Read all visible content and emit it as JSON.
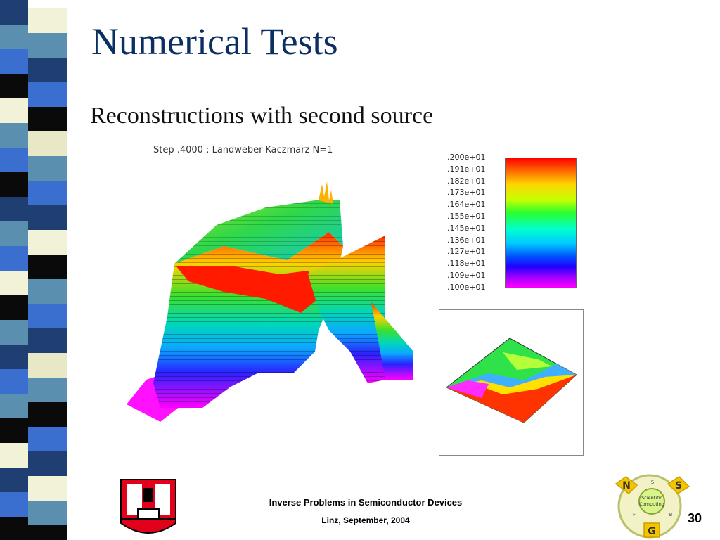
{
  "slide": {
    "title": "Numerical Tests",
    "subtitle": "Reconstructions with second source",
    "page_number": "30"
  },
  "plot": {
    "caption": "Step .4000 : Landweber-Kaczmarz N=1"
  },
  "colorbar": {
    "labels": [
      ".200e+01",
      ".191e+01",
      ".182e+01",
      ".173e+01",
      ".164e+01",
      ".155e+01",
      ".145e+01",
      ".136e+01",
      ".127e+01",
      ".118e+01",
      ".109e+01",
      ".100e+01"
    ]
  },
  "footer": {
    "line1": "Inverse Problems in Semiconductor Devices",
    "line2": "Linz, September, 2004"
  },
  "logo_right": {
    "letters": [
      "N",
      "S",
      "G"
    ],
    "small": [
      "S",
      "F",
      "B"
    ],
    "center": [
      "Scientific",
      "Computing"
    ]
  },
  "colors": {
    "title": "#0b2e63",
    "sidebar": [
      "#5b8fb0",
      "#1f3f73",
      "#3a6fd0",
      "#f2f2d8",
      "#0a0a0a",
      "#e9e8c6"
    ]
  }
}
